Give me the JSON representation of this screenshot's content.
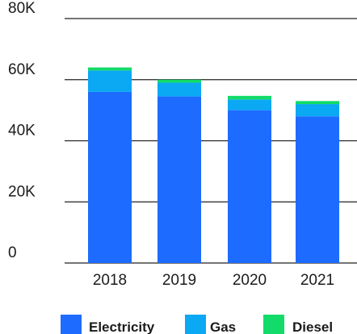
{
  "chart_data": {
    "type": "bar",
    "stacked": true,
    "categories": [
      "2018",
      "2019",
      "2020",
      "2021"
    ],
    "series": [
      {
        "name": "Electricity",
        "color": "#1e6bff",
        "values": [
          56000,
          54500,
          50000,
          48000
        ]
      },
      {
        "name": "Gas",
        "color": "#0ba8f3",
        "values": [
          7000,
          4500,
          3500,
          4000
        ]
      },
      {
        "name": "Diesel",
        "color": "#12db69",
        "values": [
          1000,
          1000,
          1200,
          1000
        ]
      }
    ],
    "ylim": [
      0,
      80000
    ],
    "yticks": [
      0,
      20000,
      40000,
      60000,
      80000
    ],
    "ytick_labels": [
      "0",
      "20K",
      "40K",
      "60K",
      "80K"
    ],
    "grid": true,
    "legend_position": "bottom",
    "title": "",
    "xlabel": "",
    "ylabel": ""
  }
}
